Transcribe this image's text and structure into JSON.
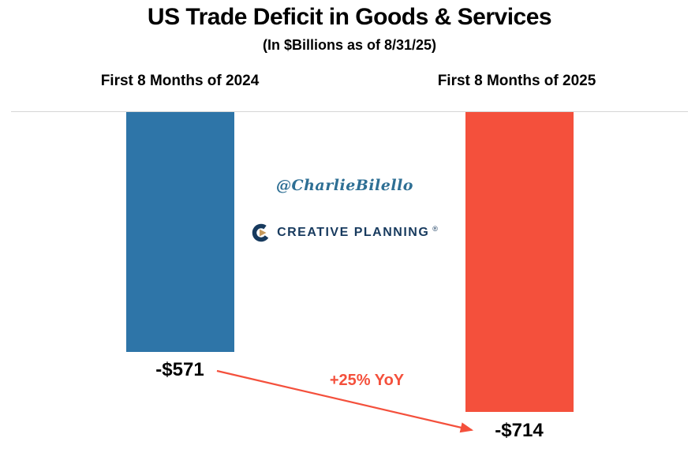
{
  "title": "US Trade Deficit in Goods & Services",
  "subtitle": "(In $Billions as of 8/31/25)",
  "watermark": {
    "handle": "@CharlieBilello",
    "brand_name": "CREATIVE PLANNING",
    "brand_reg": "®"
  },
  "annotation": {
    "yoy_label": "+25% YoY"
  },
  "chart_data": {
    "type": "bar",
    "title": "US Trade Deficit in Goods & Services",
    "subtitle": "(In $Billions as of 8/31/25)",
    "categories": [
      "First 8 Months of 2024",
      "First 8 Months of 2025"
    ],
    "values": [
      -571,
      -714
    ],
    "value_labels": [
      "-$571",
      "-$714"
    ],
    "annotation": "+25% YoY",
    "bar_colors": [
      "#2e75a8",
      "#f4503c"
    ],
    "baseline_value": 0,
    "legend": "none",
    "grid": "off"
  },
  "colors": {
    "bar_2024": "#2e75a8",
    "bar_2025": "#f4503c",
    "accent_red": "#f4503c",
    "watermark_blue": "#2e6f94",
    "brand_navy": "#173a5e",
    "baseline_gray": "#d6d6d6"
  }
}
